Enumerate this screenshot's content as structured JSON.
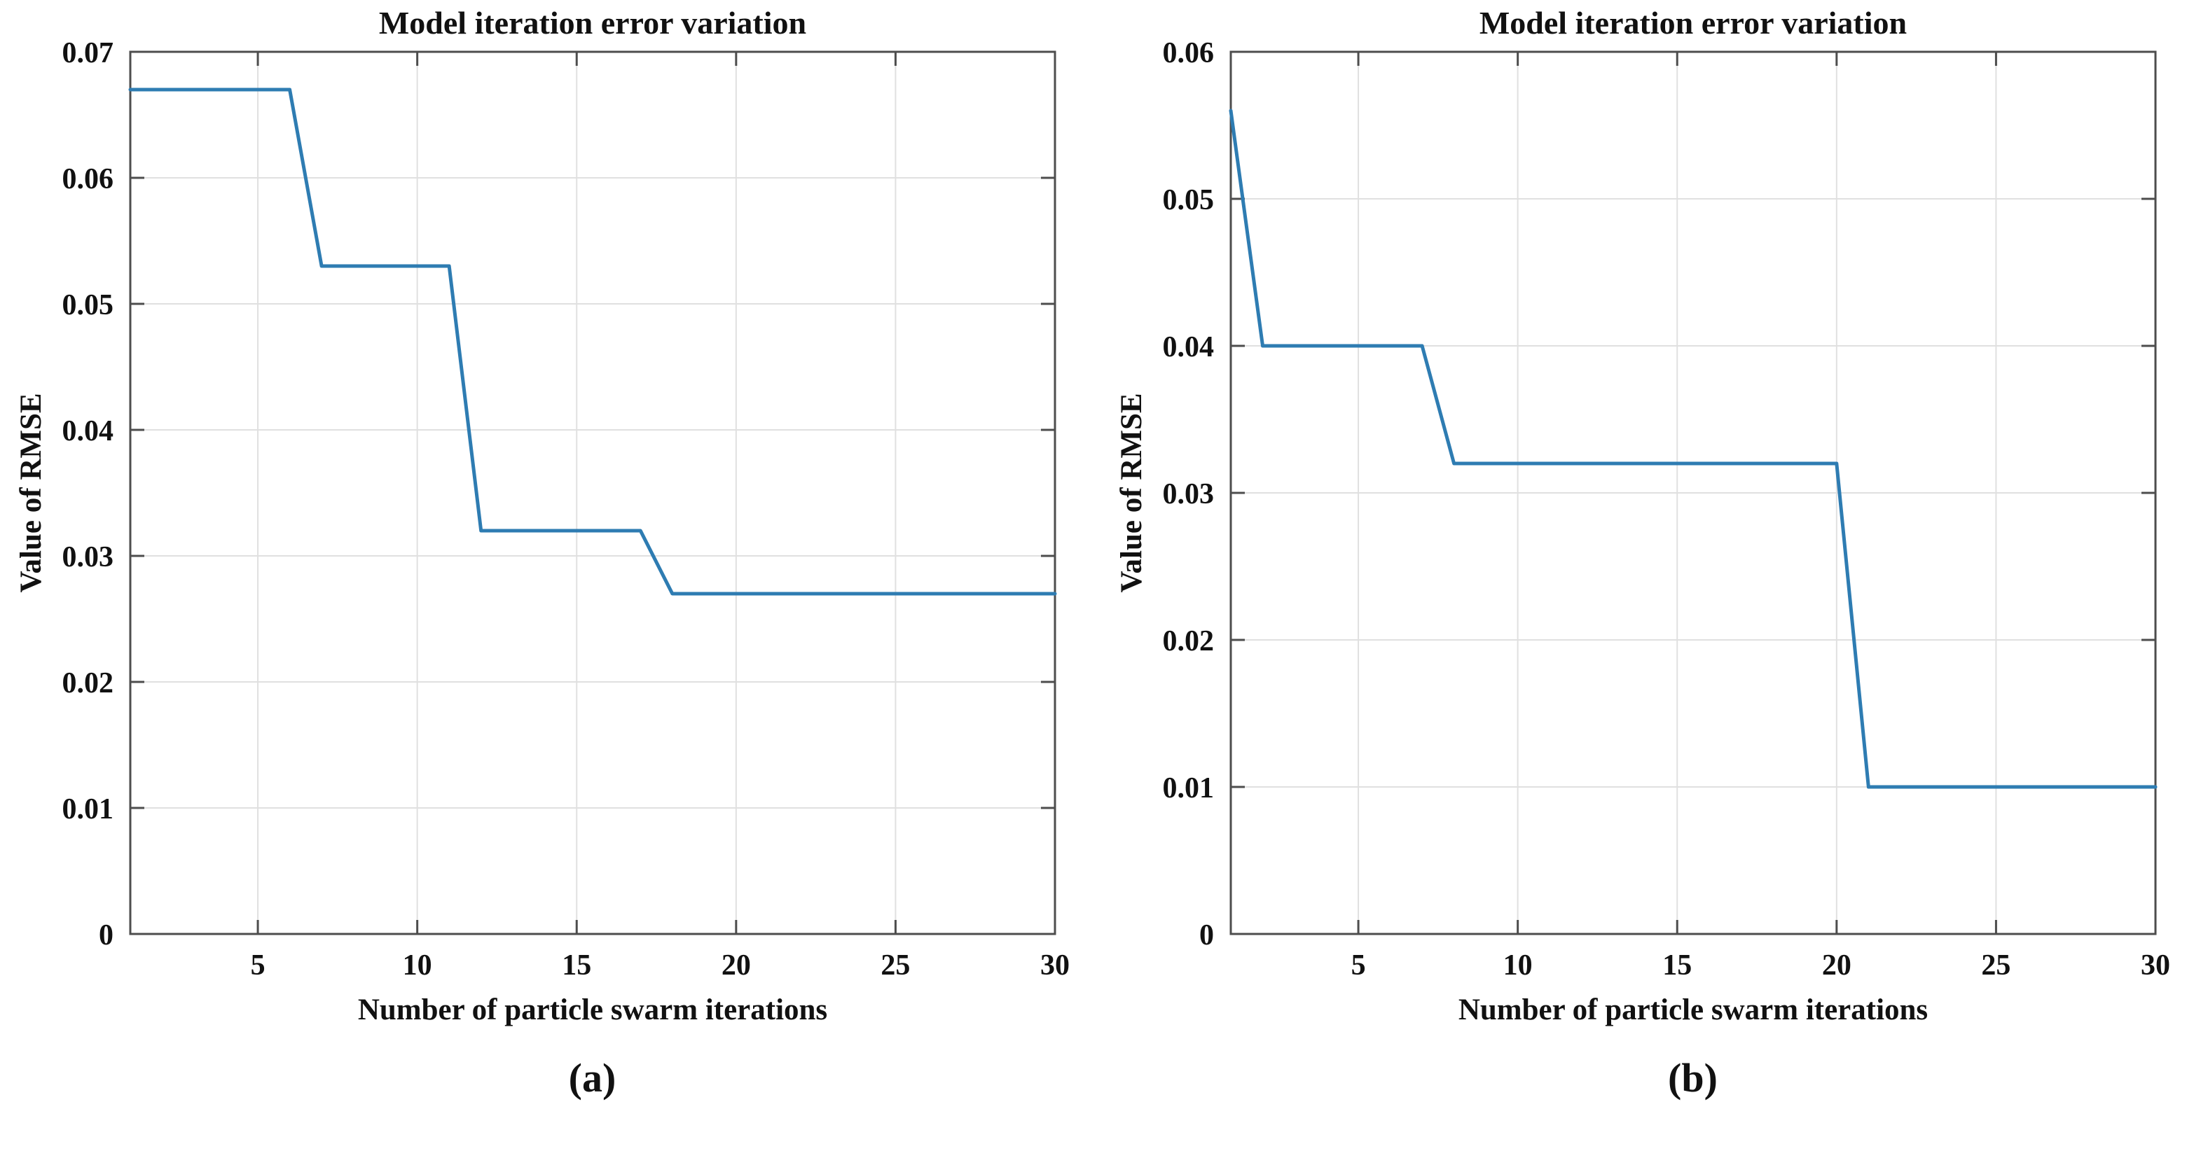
{
  "style": {
    "line_color": "#2e7cb2",
    "grid_color": "#e0e0e0",
    "axis_color": "#4d4d4d",
    "text_color": "#111111"
  },
  "chart_data": [
    {
      "type": "line",
      "title": "Model iteration error variation",
      "xlabel": "Number of particle swarm iterations",
      "ylabel": "Value of RMSE",
      "caption": "(a)",
      "xlim": [
        1,
        30
      ],
      "ylim": [
        0,
        0.07
      ],
      "xticks": [
        5,
        10,
        15,
        20,
        25,
        30
      ],
      "yticks": [
        0,
        0.01,
        0.02,
        0.03,
        0.04,
        0.05,
        0.06,
        0.07
      ],
      "ytick_labels": [
        "0",
        "0.01",
        "0.02",
        "0.03",
        "0.04",
        "0.05",
        "0.06",
        "0.07"
      ],
      "grid": true,
      "legend": "none",
      "series": [
        {
          "name": "RMSE",
          "points": [
            [
              1,
              0.067
            ],
            [
              6,
              0.067
            ],
            [
              7,
              0.053
            ],
            [
              11,
              0.053
            ],
            [
              12,
              0.032
            ],
            [
              17,
              0.032
            ],
            [
              18,
              0.027
            ],
            [
              30,
              0.027
            ]
          ]
        }
      ]
    },
    {
      "type": "line",
      "title": "Model iteration error variation",
      "xlabel": "Number of particle swarm iterations",
      "ylabel": "Value of RMSE",
      "caption": "(b)",
      "xlim": [
        1,
        30
      ],
      "ylim": [
        0,
        0.06
      ],
      "xticks": [
        5,
        10,
        15,
        20,
        25,
        30
      ],
      "yticks": [
        0,
        0.01,
        0.02,
        0.03,
        0.04,
        0.05,
        0.06
      ],
      "ytick_labels": [
        "0",
        "0.01",
        "0.02",
        "0.03",
        "0.04",
        "0.05",
        "0.06"
      ],
      "grid": true,
      "legend": "none",
      "series": [
        {
          "name": "RMSE",
          "points": [
            [
              1,
              0.056
            ],
            [
              2,
              0.04
            ],
            [
              7,
              0.04
            ],
            [
              8,
              0.032
            ],
            [
              20,
              0.032
            ],
            [
              21,
              0.01
            ],
            [
              30,
              0.01
            ]
          ]
        }
      ]
    }
  ]
}
